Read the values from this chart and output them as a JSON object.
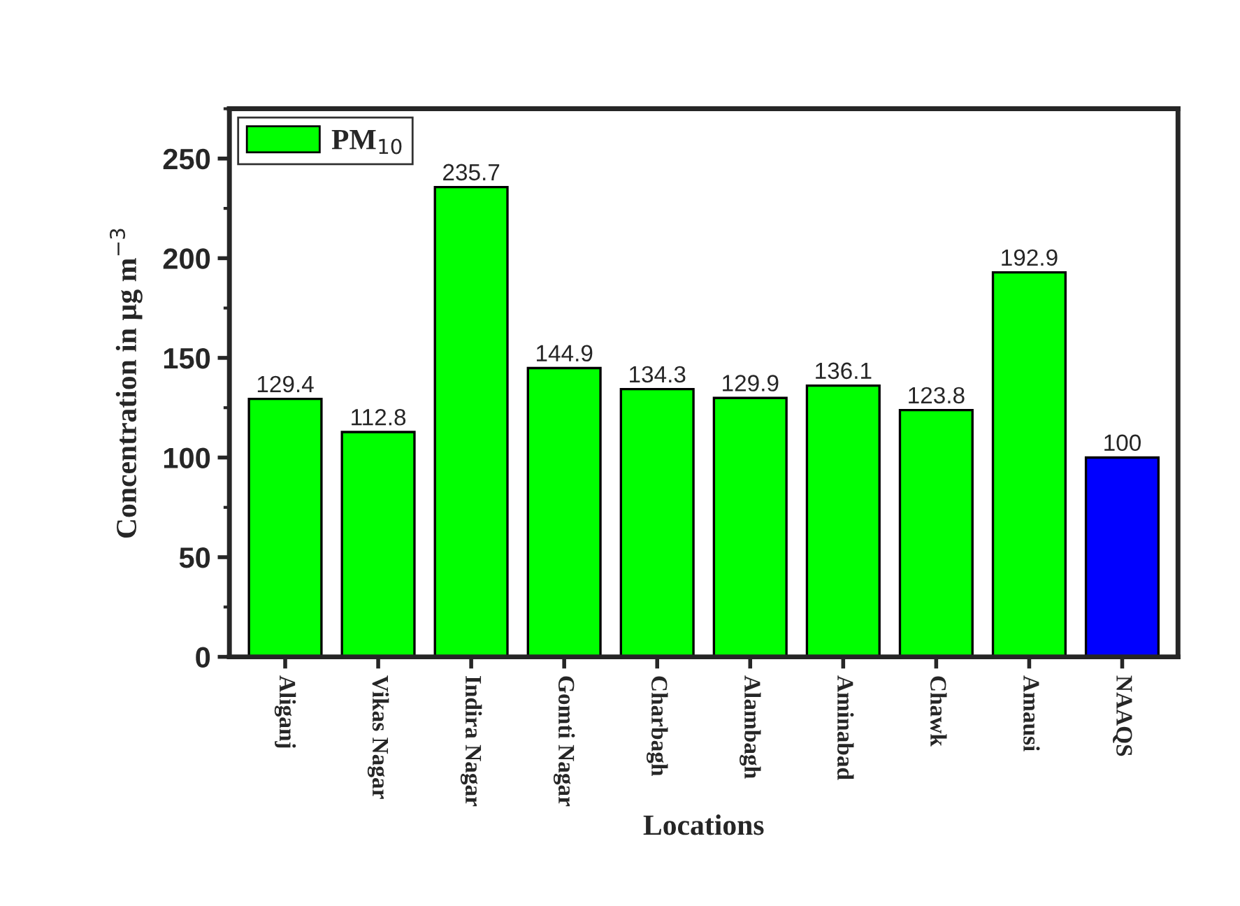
{
  "chart_data": {
    "type": "bar",
    "xlabel": "Locations",
    "ylabel": "Concentration in µg m$^{−3}$",
    "categories": [
      "Aliganj",
      "Vikas Nagar",
      "Indira Nagar",
      "Gomti Nagar",
      "Charbagh",
      "Alambagh",
      "Aminabad",
      "Chawk",
      "Amausi",
      "NAAQS"
    ],
    "series": [
      {
        "name": "PM$_{10}$",
        "color": "#00ff00",
        "colors": [
          "#00ff00",
          "#00ff00",
          "#00ff00",
          "#00ff00",
          "#00ff00",
          "#00ff00",
          "#00ff00",
          "#00ff00",
          "#00ff00",
          "#0000ff"
        ],
        "values": [
          129.4,
          112.8,
          235.7,
          144.9,
          134.3,
          129.9,
          136.1,
          123.8,
          192.9,
          100
        ]
      }
    ],
    "ylim": [
      0,
      275
    ],
    "yticks": [
      0,
      50,
      100,
      150,
      200,
      250
    ],
    "data_labels": true,
    "legend": "top left",
    "grid": false
  }
}
